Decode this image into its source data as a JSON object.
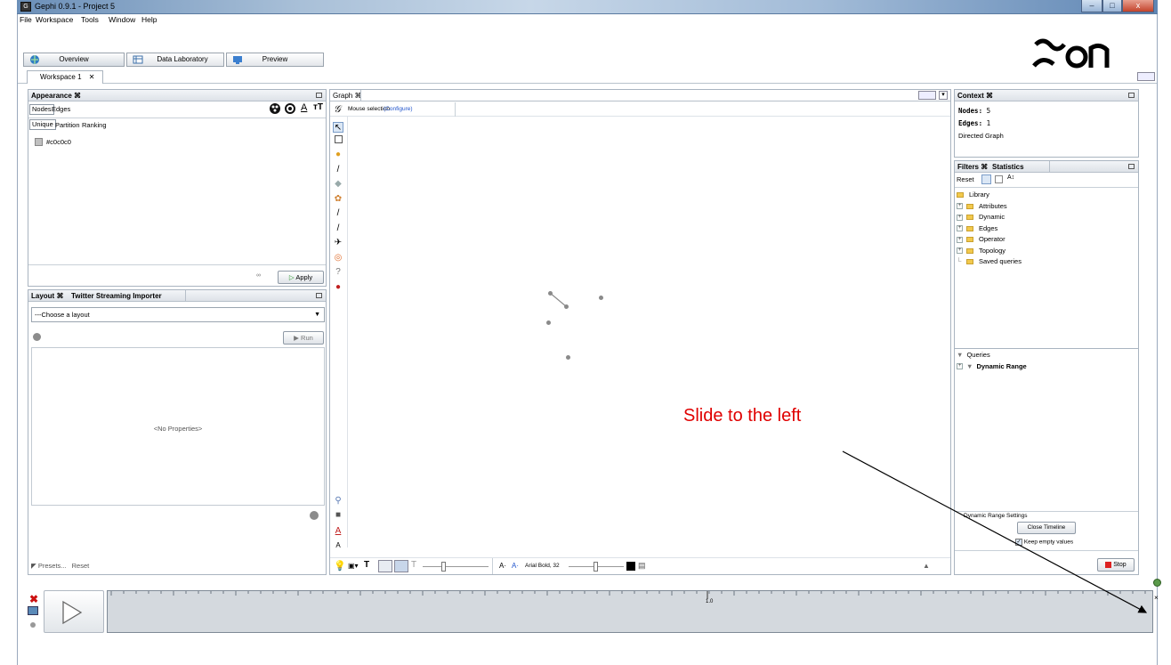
{
  "window": {
    "title": "Gephi 0.9.1 - Project 5",
    "minimize": "–",
    "maximize": "□",
    "close": "x"
  },
  "menu": [
    "File",
    "Workspace",
    "Tools",
    "Window",
    "Help"
  ],
  "main_tabs": {
    "overview": "Overview",
    "data_lab": "Data Laboratory",
    "preview": "Preview"
  },
  "logo_text": "ɣƐɒ",
  "workspace_tab": {
    "label": "Workspace 1",
    "close": "✕"
  },
  "appearance": {
    "title": "Appearance ⌘",
    "sub_tabs": [
      "Nodes",
      "Edges"
    ],
    "modes": [
      "Unique",
      "Partition",
      "Ranking"
    ],
    "color_value": "#c0c0c0",
    "apply": "Apply",
    "icons": {
      "color": "palette-icon",
      "size": "size-icon",
      "label_color": "A",
      "label_size": "тT"
    }
  },
  "layout": {
    "tab1": "Layout ⌘",
    "tab2": "Twitter Streaming Importer",
    "choose": "---Choose a layout",
    "run": "Run",
    "no_props": "<No Properties>",
    "presets": "Presets...",
    "reset": "Reset"
  },
  "graph": {
    "tab": "Graph ⌘",
    "mouse_selection": "Mouse selection",
    "configure": "(Configure)",
    "font_label": "Arial Bold, 32",
    "a_minus": "A·",
    "a_plus": "A·"
  },
  "context": {
    "title": "Context ⌘",
    "nodes_label": "Nodes:",
    "nodes_value": "5",
    "edges_label": "Edges:",
    "edges_value": "1",
    "type": "Directed Graph"
  },
  "filters": {
    "tab1": "Filters ⌘",
    "tab2": "Statistics",
    "reset": "Reset",
    "library": "Library",
    "items": [
      "Attributes",
      "Dynamic",
      "Edges",
      "Operator",
      "Topology"
    ],
    "saved": "Saved queries",
    "queries": "Queries",
    "dynamic_range": "Dynamic Range",
    "drs_title": "Dynamic Range Settings",
    "close_timeline": "Close Timeline",
    "keep_empty": "Keep empty values",
    "stop": "Stop"
  },
  "timeline": {
    "tick_label": "1.0",
    "close": "×"
  },
  "annotation": {
    "text": "Slide to the left",
    "color": "#e00000"
  }
}
